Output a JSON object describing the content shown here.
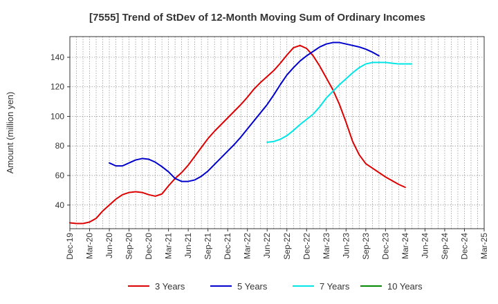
{
  "chart_data": {
    "type": "line",
    "title": "[7555]  Trend of StDev of 12-Month Moving Sum of Ordinary Incomes",
    "xlabel": "",
    "ylabel": "Amount (million yen)",
    "ylim": [
      24,
      154
    ],
    "yticks": [
      40,
      60,
      80,
      100,
      120,
      140
    ],
    "grid": true,
    "legend_position": "bottom",
    "x_tick_labels": [
      "Dec-19",
      "Mar-20",
      "Jun-20",
      "Sep-20",
      "Dec-20",
      "Mar-21",
      "Jun-21",
      "Sep-21",
      "Dec-21",
      "Mar-22",
      "Jun-22",
      "Sep-22",
      "Dec-22",
      "Mar-23",
      "Jun-23",
      "Sep-23",
      "Dec-23",
      "Mar-24",
      "Jun-24",
      "Sep-24",
      "Dec-24",
      "Mar-25"
    ],
    "series": [
      {
        "name": "3 Years",
        "color": "#dd0000",
        "start_index": 0,
        "values": [
          28,
          27.5,
          27.5,
          28.5,
          31,
          36,
          40,
          44,
          47,
          48.5,
          49,
          48.5,
          47,
          46,
          47.5,
          53,
          58,
          62,
          67,
          73,
          79,
          85,
          90,
          94.5,
          99,
          103.5,
          108,
          113,
          118.5,
          123,
          127,
          131,
          136,
          141.5,
          146.5,
          148,
          146,
          141,
          134,
          126,
          118,
          108,
          96,
          83,
          74,
          68,
          65,
          62,
          59,
          56.5,
          54,
          52
        ]
      },
      {
        "name": "5 Years",
        "color": "#0000cc",
        "start_index": 6,
        "values": [
          68.5,
          66.5,
          66.5,
          68.5,
          70.5,
          71.5,
          71,
          69,
          66,
          62.5,
          58,
          56,
          56,
          57,
          59.5,
          63,
          67.5,
          72,
          76.5,
          81,
          86,
          91.5,
          97,
          102.5,
          108,
          114.5,
          121.5,
          128,
          133,
          137.5,
          141,
          144,
          147,
          149,
          150,
          150,
          149,
          148,
          147,
          145.5,
          143.5,
          141
        ]
      },
      {
        "name": "7 Years",
        "color": "#00e5e5",
        "start_index": 30,
        "values": [
          82.5,
          83,
          84.5,
          87,
          90.5,
          94.5,
          98,
          101.5,
          106.5,
          112.5,
          117,
          121.5,
          125.5,
          129.5,
          133,
          135.5,
          136.5,
          136.5,
          136.5,
          136,
          135.5,
          135.5,
          135.5
        ]
      },
      {
        "name": "10 Years",
        "color": "#008800",
        "start_index": 0,
        "values": []
      }
    ]
  }
}
